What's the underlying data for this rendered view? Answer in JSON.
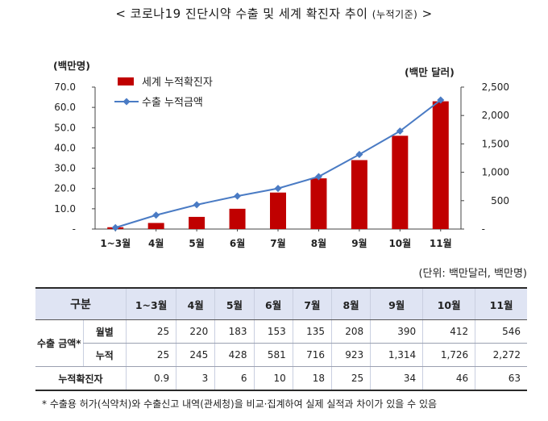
{
  "title": "< 코로나19 진단시약 수출 및 세계 확진자 추이",
  "title_sub": "(누적기준)",
  "title_end": ">",
  "unit_note": "(단위: 백만달러, 백만명)",
  "footnote": "* 수출용 허가(식약처)와 수출신고 내역(관세청)을 비교·집계하여 실제 실적과 차이가 있을 수 있음",
  "table": {
    "header": [
      "구분",
      "1~3월",
      "4월",
      "5월",
      "6월",
      "7월",
      "8월",
      "9월",
      "10월",
      "11월"
    ],
    "group_label": "수출 금액*",
    "rows": [
      {
        "label": "월별",
        "values": [
          "25",
          "220",
          "183",
          "153",
          "135",
          "208",
          "390",
          "412",
          "546"
        ]
      },
      {
        "label": "누적",
        "values": [
          "25",
          "245",
          "428",
          "581",
          "716",
          "923",
          "1,314",
          "1,726",
          "2,272"
        ]
      }
    ],
    "last_row": {
      "label": "누적확진자",
      "values": [
        "0.9",
        "3",
        "6",
        "10",
        "18",
        "25",
        "34",
        "46",
        "63"
      ]
    }
  },
  "chart_data": {
    "type": "bar",
    "categories": [
      "1~3월",
      "4월",
      "5월",
      "6월",
      "7월",
      "8월",
      "9월",
      "10월",
      "11월"
    ],
    "series": [
      {
        "name": "세계 누적확진자",
        "kind": "bar",
        "axis": "left",
        "color": "#c00000",
        "values": [
          0.9,
          3,
          6,
          10,
          18,
          25,
          34,
          46,
          63
        ]
      },
      {
        "name": "수출 누적금액",
        "kind": "line",
        "axis": "right",
        "color": "#4a7bc4",
        "values": [
          25,
          245,
          428,
          581,
          716,
          923,
          1314,
          1726,
          2272
        ]
      }
    ],
    "y_left": {
      "label": "(백만명)",
      "ylim": [
        0,
        70
      ],
      "ticks": [
        "-",
        "10.0",
        "20.0",
        "30.0",
        "40.0",
        "50.0",
        "60.0",
        "70.0"
      ]
    },
    "y_right": {
      "label": "(백만 달러)",
      "ylim": [
        0,
        2500
      ],
      "ticks": [
        "-",
        "500",
        "1,000",
        "1,500",
        "2,000",
        "2,500"
      ]
    },
    "legend_position": "top-left",
    "grid": false
  }
}
